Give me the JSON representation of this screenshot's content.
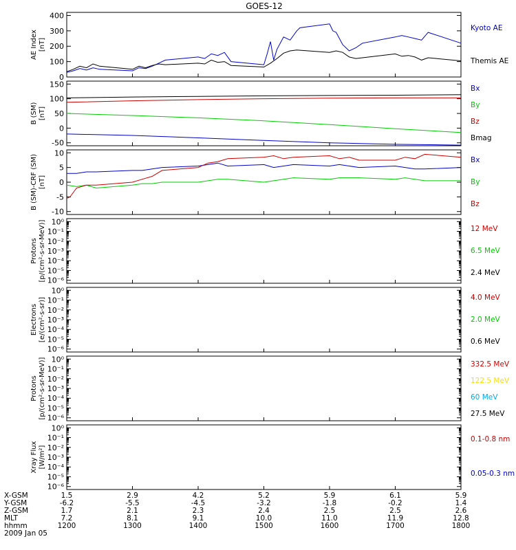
{
  "title": "GOES-12",
  "chart_data": [
    {
      "id": "ae",
      "type": "line",
      "ylabel": [
        "AE Index",
        "[nT]"
      ],
      "ylim": [
        0,
        420
      ],
      "yscale": "linear",
      "yticks": [
        "0",
        "100",
        "200",
        "300",
        "400"
      ],
      "ytick_values": [
        0,
        100,
        200,
        300,
        400
      ],
      "series": [
        {
          "name": "Kyoto AE",
          "color": "#0000cc",
          "x": [
            1200,
            1210,
            1220,
            1230,
            1240,
            1250,
            1300,
            1310,
            1320,
            1330,
            1340,
            1350,
            1400,
            1410,
            1420,
            1430,
            1440,
            1450,
            1500,
            1505,
            1510,
            1515,
            1520,
            1530,
            1540,
            1550,
            1555,
            1600,
            1605,
            1610,
            1620,
            1630,
            1640,
            1650,
            1700,
            1710,
            1720,
            1730,
            1740,
            1750,
            1800
          ],
          "y": [
            30,
            40,
            55,
            45,
            60,
            50,
            40,
            60,
            55,
            70,
            90,
            110,
            130,
            120,
            150,
            140,
            160,
            100,
            80,
            150,
            230,
            110,
            180,
            260,
            240,
            300,
            320,
            345,
            300,
            290,
            210,
            170,
            190,
            220,
            260,
            270,
            260,
            250,
            240,
            290,
            220
          ]
        },
        {
          "name": "Themis AE",
          "color": "#000000",
          "x": [
            1200,
            1210,
            1220,
            1230,
            1240,
            1250,
            1300,
            1310,
            1320,
            1330,
            1340,
            1350,
            1400,
            1410,
            1420,
            1430,
            1440,
            1450,
            1500,
            1510,
            1520,
            1530,
            1540,
            1550,
            1600,
            1610,
            1620,
            1630,
            1640,
            1650,
            1700,
            1710,
            1720,
            1730,
            1740,
            1750,
            1800
          ],
          "y": [
            35,
            50,
            70,
            60,
            85,
            70,
            50,
            70,
            60,
            75,
            85,
            80,
            90,
            85,
            110,
            95,
            100,
            75,
            65,
            90,
            120,
            155,
            170,
            175,
            160,
            170,
            160,
            130,
            120,
            125,
            150,
            135,
            140,
            130,
            110,
            125,
            105
          ]
        }
      ]
    },
    {
      "id": "b",
      "type": "line",
      "ylabel": [
        "B (SM)",
        "[nT]"
      ],
      "ylim": [
        -60,
        160
      ],
      "yscale": "linear",
      "yticks": [
        "-50",
        "0",
        "50",
        "100",
        "150"
      ],
      "ytick_values": [
        -50,
        0,
        50,
        100,
        150
      ],
      "series": [
        {
          "name": "Bx",
          "color": "#0000cc",
          "x": [
            1200,
            1300,
            1400,
            1500,
            1600,
            1700,
            1800
          ],
          "y": [
            -20,
            -25,
            -33,
            -42,
            -50,
            -55,
            -58
          ]
        },
        {
          "name": "By",
          "color": "#00cc00",
          "x": [
            1200,
            1300,
            1400,
            1500,
            1600,
            1700,
            1800
          ],
          "y": [
            50,
            43,
            35,
            25,
            12,
            -2,
            -15
          ]
        },
        {
          "name": "Bz",
          "color": "#cc0000",
          "x": [
            1200,
            1300,
            1400,
            1500,
            1600,
            1700,
            1800
          ],
          "y": [
            88,
            93,
            97,
            100,
            102,
            103,
            103
          ]
        },
        {
          "name": "Bmag",
          "color": "#000000",
          "x": [
            1200,
            1300,
            1400,
            1500,
            1600,
            1700,
            1800
          ],
          "y": [
            103,
            106,
            108,
            110,
            111,
            112,
            114
          ]
        }
      ]
    },
    {
      "id": "dbsm",
      "type": "line",
      "ylabel": [
        "B (SM)-CRF (SM)",
        "[nT]"
      ],
      "ylim": [
        -11,
        11
      ],
      "yscale": "linear",
      "yticks": [
        "-10",
        "-5",
        "0",
        "5",
        "10"
      ],
      "ytick_values": [
        -10,
        -5,
        0,
        5,
        10
      ],
      "series": [
        {
          "name": "Bx",
          "color": "#0000cc",
          "x": [
            1200,
            1215,
            1230,
            1245,
            1300,
            1315,
            1330,
            1345,
            1400,
            1415,
            1430,
            1445,
            1500,
            1515,
            1530,
            1545,
            1600,
            1615,
            1630,
            1645,
            1700,
            1715,
            1730,
            1745,
            1800
          ],
          "y": [
            3,
            3,
            3.5,
            3.5,
            4,
            4,
            4.5,
            5,
            5.5,
            6,
            6.5,
            5.5,
            6,
            5,
            5.5,
            6,
            5.5,
            6,
            5.5,
            5,
            5.5,
            5,
            4.5,
            4.5,
            5
          ]
        },
        {
          "name": "By",
          "color": "#00cc00",
          "x": [
            1200,
            1215,
            1230,
            1245,
            1300,
            1315,
            1330,
            1345,
            1400,
            1415,
            1430,
            1445,
            1500,
            1515,
            1530,
            1545,
            1600,
            1615,
            1630,
            1645,
            1700,
            1715,
            1730,
            1745,
            1800
          ],
          "y": [
            -1,
            -1.5,
            -1,
            -2,
            -1,
            -0.5,
            -0.5,
            0,
            0,
            0.5,
            1,
            1,
            0,
            0.5,
            1,
            1.5,
            1,
            1.5,
            1.5,
            1.5,
            1,
            1.5,
            1,
            0.5,
            0.5
          ]
        },
        {
          "name": "Bz",
          "color": "#cc0000",
          "x": [
            1200,
            1205,
            1215,
            1230,
            1245,
            1300,
            1315,
            1330,
            1345,
            1400,
            1415,
            1430,
            1445,
            1500,
            1515,
            1530,
            1545,
            1600,
            1615,
            1630,
            1645,
            1700,
            1715,
            1730,
            1745,
            1800
          ],
          "y": [
            -5.5,
            -5,
            -2,
            -1,
            -1,
            0,
            1,
            2,
            4,
            5,
            6.5,
            7,
            8,
            8.5,
            9,
            8,
            8.5,
            9,
            8,
            8.5,
            7.5,
            7.5,
            8.5,
            8,
            9.5,
            8.5
          ]
        }
      ]
    },
    {
      "id": "protons1",
      "type": "line",
      "ylabel": [
        "Protons",
        "[p/(cm²-s-sr-MeV)]"
      ],
      "yscale": "log",
      "ylim_exp": [
        -6.3,
        0.3
      ],
      "yticks": [
        "10⁰",
        "10⁻¹",
        "10⁻²",
        "10⁻³",
        "10⁻⁴",
        "10⁻⁵",
        "10⁻⁶"
      ],
      "ytick_values": [
        0,
        -1,
        -2,
        -3,
        -4,
        -5,
        -6
      ],
      "series": [
        {
          "name": "12 MeV",
          "color": "#cc0000",
          "x": [],
          "y": []
        },
        {
          "name": "6.5 MeV",
          "color": "#00cc00",
          "x": [],
          "y": []
        },
        {
          "name": "2.4 MeV",
          "color": "#000000",
          "x": [],
          "y": []
        }
      ]
    },
    {
      "id": "electrons",
      "type": "line",
      "ylabel": [
        "Electrons",
        "[e/(cm²-s-sr)]"
      ],
      "yscale": "log",
      "ylim_exp": [
        -6.3,
        0.3
      ],
      "yticks": [
        "10⁰",
        "10⁻¹",
        "10⁻²",
        "10⁻³",
        "10⁻⁴",
        "10⁻⁵",
        "10⁻⁶"
      ],
      "ytick_values": [
        0,
        -1,
        -2,
        -3,
        -4,
        -5,
        -6
      ],
      "series": [
        {
          "name": "4.0 MeV",
          "color": "#cc0000",
          "x": [],
          "y": []
        },
        {
          "name": "2.0 MeV",
          "color": "#00cc00",
          "x": [],
          "y": []
        },
        {
          "name": "0.6 MeV",
          "color": "#000000",
          "x": [],
          "y": []
        }
      ]
    },
    {
      "id": "protons2",
      "type": "line",
      "ylabel": [
        "Protons",
        "[p/(cm²-s-sr-MeV)]"
      ],
      "yscale": "log",
      "ylim_exp": [
        -6.3,
        0.3
      ],
      "yticks": [
        "10⁰",
        "10⁻¹",
        "10⁻²",
        "10⁻³",
        "10⁻⁴",
        "10⁻⁵",
        "10⁻⁶"
      ],
      "ytick_values": [
        0,
        -1,
        -2,
        -3,
        -4,
        -5,
        -6
      ],
      "series": [
        {
          "name": "332.5 MeV",
          "color": "#cc0000",
          "x": [],
          "y": []
        },
        {
          "name": "122.5 MeV",
          "color": "#ffdd00",
          "x": [],
          "y": []
        },
        {
          "name": "60 MeV",
          "color": "#00aaee",
          "x": [],
          "y": []
        },
        {
          "name": "27.5 MeV",
          "color": "#000000",
          "x": [],
          "y": []
        }
      ]
    },
    {
      "id": "xray",
      "type": "line",
      "ylabel": [
        "Xray Flux",
        "[W/m²]"
      ],
      "yscale": "log",
      "ylim_exp": [
        -6.3,
        0.3
      ],
      "yticks": [
        "10⁰",
        "10⁻¹",
        "10⁻²",
        "10⁻³",
        "10⁻⁴",
        "10⁻⁵",
        "10⁻⁶"
      ],
      "ytick_values": [
        0,
        -1,
        -2,
        -3,
        -4,
        -5,
        -6
      ],
      "series": [
        {
          "name": "0.1-0.8 nm",
          "color": "#cc0000",
          "x": [],
          "y": []
        },
        {
          "name": "0.05-0.3 nm",
          "color": "#0000cc",
          "x": [],
          "y": []
        }
      ]
    }
  ],
  "x_axis": {
    "xlim": [
      1200,
      1800
    ],
    "row_labels": [
      "X-GSM",
      "Y-GSM",
      "Z-GSM",
      "MLT",
      "hhmm"
    ],
    "columns": [
      {
        "x": 1200,
        "values": [
          "1.5",
          "-6.2",
          "1.7",
          "7.2",
          "1200"
        ]
      },
      {
        "x": 1300,
        "values": [
          "2.9",
          "-5.5",
          "2.1",
          "8.1",
          "1300"
        ]
      },
      {
        "x": 1400,
        "values": [
          "4.2",
          "-4.5",
          "2.3",
          "9.1",
          "1400"
        ]
      },
      {
        "x": 1500,
        "values": [
          "5.2",
          "-3.2",
          "2.4",
          "10.0",
          "1500"
        ]
      },
      {
        "x": 1600,
        "values": [
          "5.9",
          "-1.8",
          "2.5",
          "11.0",
          "1600"
        ]
      },
      {
        "x": 1700,
        "values": [
          "6.1",
          "-0.2",
          "2.5",
          "11.9",
          "1700"
        ]
      },
      {
        "x": 1800,
        "values": [
          "5.9",
          "1.4",
          "2.6",
          "12.8",
          "1800"
        ]
      }
    ],
    "date": "2009 Jan 05"
  }
}
